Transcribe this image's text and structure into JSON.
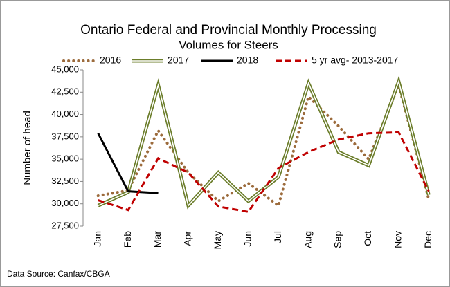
{
  "chart_data": {
    "type": "line",
    "title": [
      "Ontario Federal and Provincial Monthly Processing",
      "Volumes for Steers"
    ],
    "y_label": "Number of head",
    "source": "Data Source: Canfax/CBGA",
    "categories": [
      "Jan",
      "Feb",
      "Mar",
      "Apr",
      "May",
      "Jun",
      "Jul",
      "Aug",
      "Sep",
      "Oct",
      "Nov",
      "Dec"
    ],
    "series": [
      {
        "name": "2016",
        "color": "#9c6b3c",
        "style": "dotted",
        "values": [
          30900,
          31500,
          38200,
          33500,
          30300,
          32300,
          29800,
          42000,
          38700,
          35000,
          43300,
          30500
        ]
      },
      {
        "name": "2017",
        "color": "#6b7d2a",
        "style": "double",
        "values": [
          29800,
          31300,
          43300,
          29800,
          33500,
          30300,
          33000,
          43500,
          35800,
          34300,
          43700,
          31000
        ]
      },
      {
        "name": "2018",
        "color": "#000000",
        "style": "solid",
        "values": [
          37900,
          31400,
          31200,
          null,
          null,
          null,
          null,
          null,
          null,
          null,
          null,
          null
        ]
      },
      {
        "name": "5 yr avg- 2013-2017",
        "color": "#c00000",
        "style": "dashed",
        "values": [
          30400,
          29300,
          35100,
          33500,
          29700,
          29100,
          34000,
          35800,
          37200,
          37900,
          38000,
          31400
        ]
      }
    ],
    "ylim": [
      27500,
      45000
    ],
    "yticks": [
      {
        "value": 27500,
        "label": "27,500"
      },
      {
        "value": 30000,
        "label": "30,000"
      },
      {
        "value": 32500,
        "label": "32,500"
      },
      {
        "value": 35000,
        "label": "35,000"
      },
      {
        "value": 37500,
        "label": "37,500"
      },
      {
        "value": 40000,
        "label": "40,000"
      },
      {
        "value": 42500,
        "label": "42,500"
      },
      {
        "value": 45000,
        "label": "45,000"
      }
    ]
  }
}
